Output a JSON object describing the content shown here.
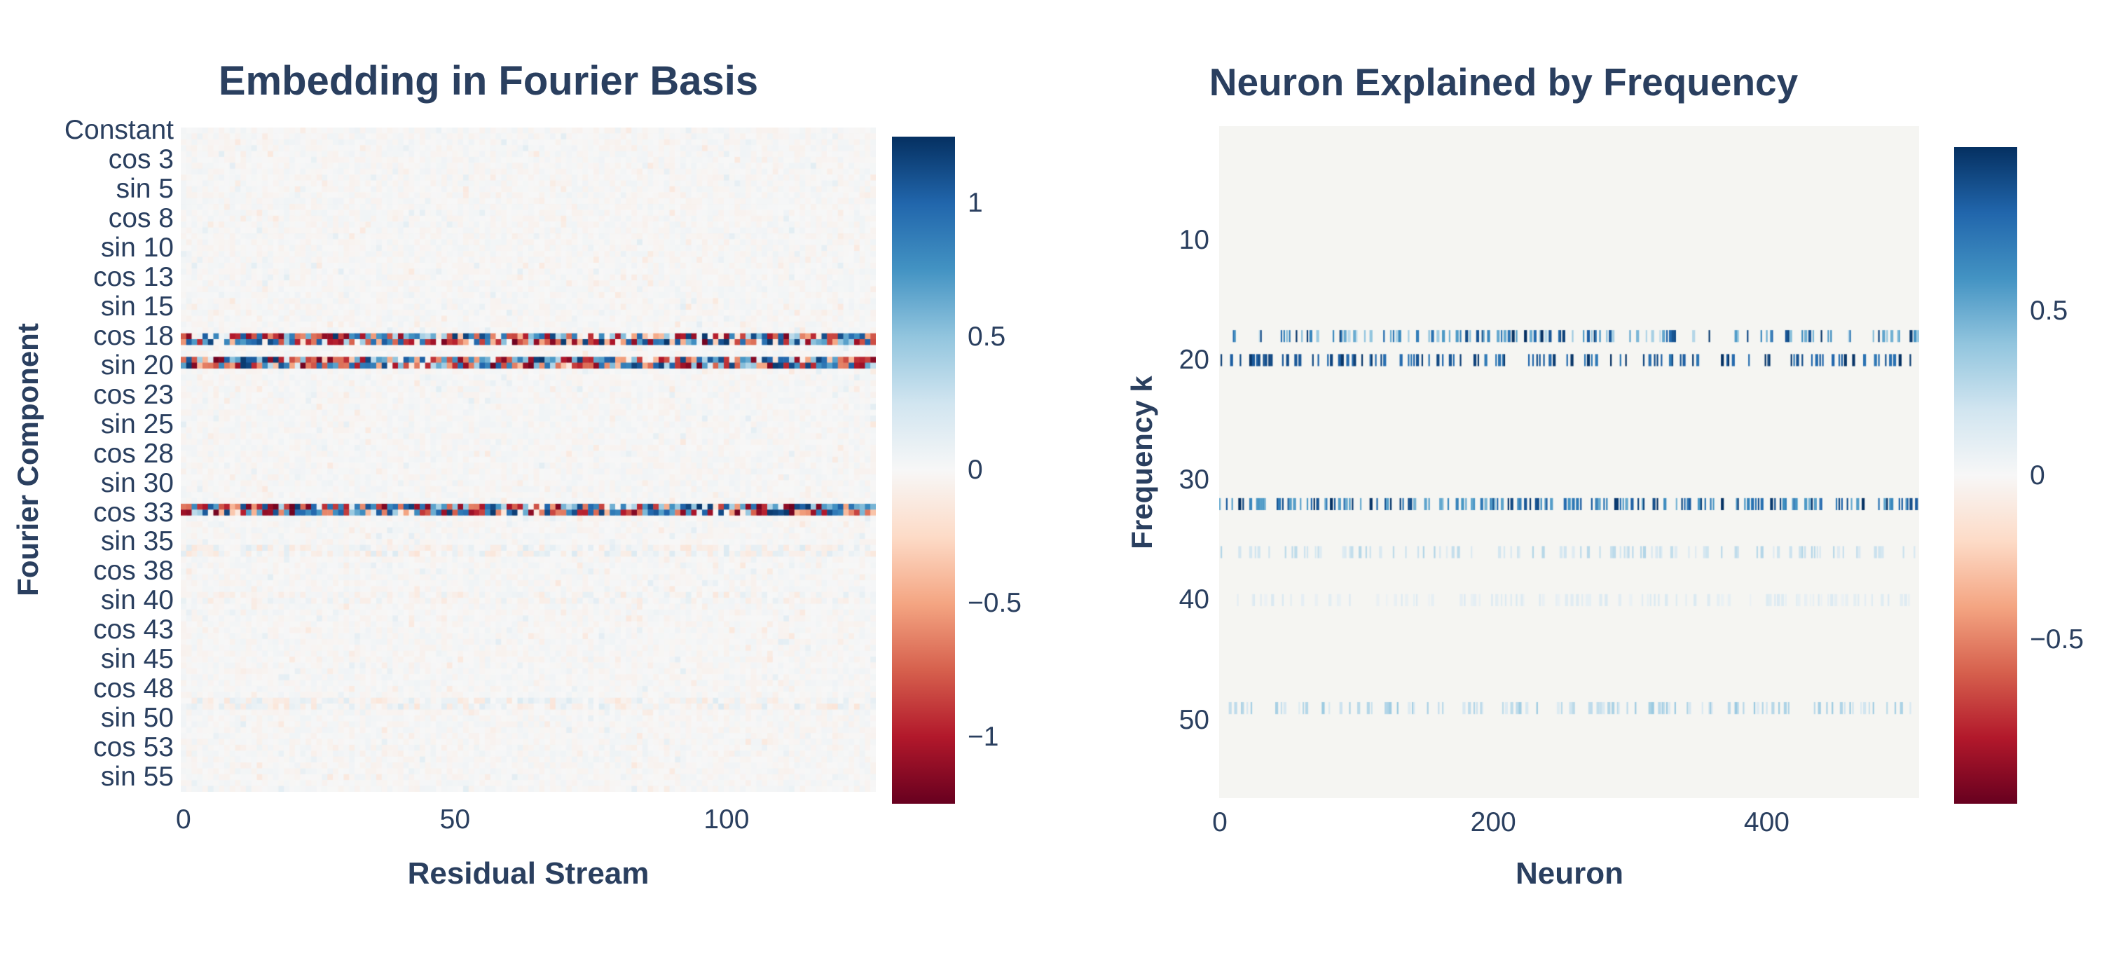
{
  "colors": {
    "text": "#2a3f5f",
    "background": "#ffffff",
    "heatmap_zero_bg": "#f5f5f2",
    "rdbu_low_to_high": [
      "#67001f",
      "#b2182b",
      "#d6604d",
      "#f4a582",
      "#fddbc7",
      "#f7f7f7",
      "#d1e5f0",
      "#92c5de",
      "#4393c3",
      "#2166ac",
      "#053061"
    ]
  },
  "chart_data": [
    {
      "type": "heatmap",
      "title": "Embedding in Fourier Basis",
      "xlabel": "Residual Stream",
      "ylabel": "Fourier Component",
      "n_rows": 113,
      "n_cols": 128,
      "colorscale": "RdBu",
      "grid": false,
      "zmin": -1.25,
      "zmax": 1.25,
      "x_ticks": [
        {
          "value": 0,
          "label": "0"
        },
        {
          "value": 50,
          "label": "50"
        },
        {
          "value": 100,
          "label": "100"
        }
      ],
      "y_tick_row_step": 5,
      "y_tick_labels": [
        "Constant",
        "cos 3",
        "sin 5",
        "cos 8",
        "sin 10",
        "cos 13",
        "sin 15",
        "cos 18",
        "sin 20",
        "cos 23",
        "sin 25",
        "cos 28",
        "sin 30",
        "cos 33",
        "sin 35",
        "cos 38",
        "sin 40",
        "cos 43",
        "sin 45",
        "cos 48",
        "sin 50",
        "cos 53",
        "sin 55"
      ],
      "colorbar_ticks": [
        {
          "value": 1,
          "label": "1"
        },
        {
          "value": 0.5,
          "label": "0.5"
        },
        {
          "value": 0,
          "label": "0"
        },
        {
          "value": -0.5,
          "label": "−0.5"
        },
        {
          "value": -1,
          "label": "−1"
        }
      ],
      "background_noise_amplitude": 0.05,
      "active_row_bands": [
        {
          "rows": [
            35,
            36
          ],
          "fourier_components": "cos 18 / sin 18",
          "amplitude": 1.2
        },
        {
          "rows": [
            39,
            40
          ],
          "fourier_components": "cos 20 / sin 20",
          "amplitude": 1.2
        },
        {
          "rows": [
            64,
            65
          ],
          "fourier_components": "sin 32 / cos 33",
          "amplitude": 1.2
        },
        {
          "rows": [
            71,
            72
          ],
          "fourier_components": "cos 36 / sin 36",
          "amplitude": 0.2
        },
        {
          "rows": [
            79,
            80
          ],
          "fourier_components": "cos 40 / sin 40",
          "amplitude": 0.14
        },
        {
          "rows": [
            97,
            98
          ],
          "fourier_components": "cos 49 / sin 49",
          "amplitude": 0.2
        },
        {
          "rows": [
            105,
            106
          ],
          "fourier_components": "cos 53 / sin 53",
          "amplitude": 0.09
        }
      ]
    },
    {
      "type": "heatmap",
      "title": "Neuron Explained by Frequency",
      "xlabel": "Neuron",
      "ylabel": "Frequency k",
      "n_rows": 56,
      "n_cols": 512,
      "colorscale": "RdBu",
      "grid": false,
      "zmin": -1.0,
      "zmax": 1.0,
      "x_ticks": [
        {
          "value": 0,
          "label": "0"
        },
        {
          "value": 200,
          "label": "200"
        },
        {
          "value": 400,
          "label": "400"
        }
      ],
      "y_ticks": [
        {
          "value": 10,
          "label": "10"
        },
        {
          "value": 20,
          "label": "20"
        },
        {
          "value": 30,
          "label": "30"
        },
        {
          "value": 40,
          "label": "40"
        },
        {
          "value": 50,
          "label": "50"
        }
      ],
      "colorbar_ticks": [
        {
          "value": 0.5,
          "label": "0.5"
        },
        {
          "value": 0,
          "label": "0"
        },
        {
          "value": -0.5,
          "label": "−0.5"
        }
      ],
      "active_frequency_rows": [
        {
          "k": 18,
          "density": 0.5,
          "value_range": [
            0.25,
            1.0
          ],
          "appearance": "mix of medium and dark blue bars"
        },
        {
          "k": 20,
          "density": 0.5,
          "value_range": [
            0.7,
            1.0
          ],
          "appearance": "dark navy bars"
        },
        {
          "k": 32,
          "density": 0.7,
          "value_range": [
            0.45,
            1.0
          ],
          "appearance": "densest dark navy stripe"
        },
        {
          "k": 36,
          "density": 0.42,
          "value_range": [
            0.12,
            0.3
          ],
          "appearance": "light blue bars"
        },
        {
          "k": 40,
          "density": 0.36,
          "value_range": [
            0.06,
            0.16
          ],
          "appearance": "very light blue bars"
        },
        {
          "k": 49,
          "density": 0.45,
          "value_range": [
            0.12,
            0.38
          ],
          "appearance": "light blue bars"
        }
      ]
    }
  ]
}
